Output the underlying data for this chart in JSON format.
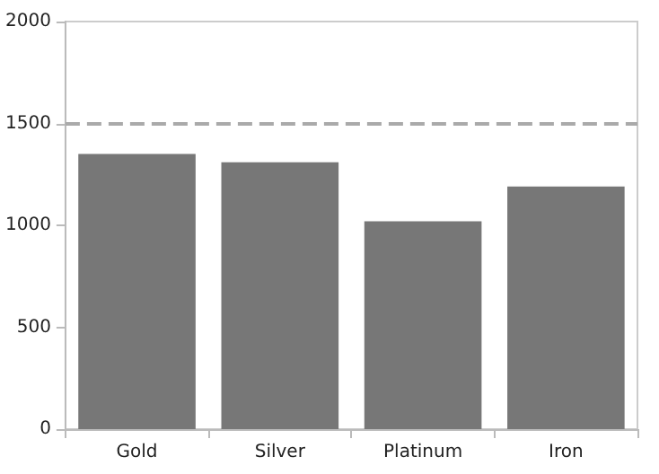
{
  "chart_data": {
    "type": "bar",
    "categories": [
      "Gold",
      "Silver",
      "Platinum",
      "Iron"
    ],
    "values": [
      1350,
      1310,
      1020,
      1190
    ],
    "color": "#777777",
    "ylim": [
      0,
      2000
    ],
    "yticks": [
      0,
      500,
      1000,
      1500,
      2000
    ],
    "grid": false,
    "ref_lines": [
      {
        "axis": "y",
        "value": 1500,
        "color": "#aaaaaa",
        "line_style": "dashed"
      }
    ]
  }
}
